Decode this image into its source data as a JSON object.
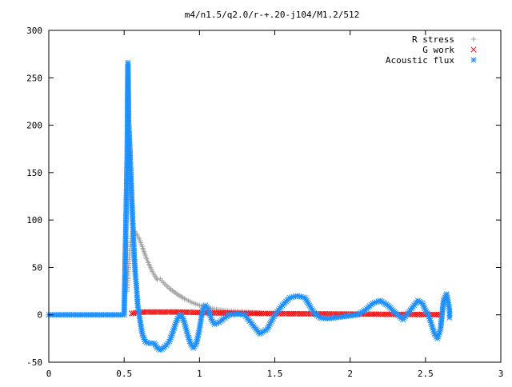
{
  "chart_data": {
    "type": "scatter",
    "title": "m4/n1.5/q2.0/r-+.20-j104/M1.2/512",
    "xlabel": "",
    "ylabel": "",
    "xlim": [
      0,
      3
    ],
    "ylim": [
      -50,
      300
    ],
    "x_ticks": [
      "0",
      "0.5",
      "1",
      "1.5",
      "2",
      "2.5",
      "3"
    ],
    "y_ticks": [
      "300",
      "250",
      "200",
      "150",
      "100",
      "50",
      "0",
      "-50"
    ],
    "grid": false,
    "legend_position": "top-right",
    "series": [
      {
        "name": "R stress",
        "marker": "plus",
        "color": "#a0a0a0",
        "points": [
          [
            0.52,
            25
          ],
          [
            0.525,
            40
          ],
          [
            0.53,
            52
          ],
          [
            0.535,
            63
          ],
          [
            0.54,
            72
          ],
          [
            0.545,
            78
          ],
          [
            0.55,
            83
          ],
          [
            0.56,
            87
          ],
          [
            0.57,
            88
          ],
          [
            0.58,
            86
          ],
          [
            0.6,
            80
          ],
          [
            0.62,
            72
          ],
          [
            0.64,
            63
          ],
          [
            0.66,
            55
          ],
          [
            0.68,
            48
          ],
          [
            0.7,
            42
          ],
          [
            0.72,
            37
          ],
          [
            0.74,
            38
          ],
          [
            0.76,
            34
          ],
          [
            0.8,
            28
          ],
          [
            0.85,
            22
          ],
          [
            0.9,
            17
          ],
          [
            0.95,
            13
          ],
          [
            1.0,
            10
          ],
          [
            1.05,
            8
          ],
          [
            1.1,
            6
          ],
          [
            1.15,
            5
          ],
          [
            1.2,
            4
          ],
          [
            1.25,
            3.5
          ],
          [
            1.3,
            3
          ],
          [
            1.35,
            2.5
          ],
          [
            1.4,
            2
          ]
        ]
      },
      {
        "name": "G work",
        "marker": "cross",
        "color": "#ff0000",
        "points": [
          [
            0.55,
            1.5
          ],
          [
            0.6,
            2.5
          ],
          [
            0.65,
            3
          ],
          [
            0.7,
            3
          ],
          [
            0.75,
            3
          ],
          [
            0.8,
            3
          ],
          [
            0.85,
            3
          ],
          [
            0.9,
            2.8
          ],
          [
            0.95,
            2.6
          ],
          [
            1.0,
            2.4
          ],
          [
            1.05,
            2.2
          ],
          [
            1.1,
            2
          ],
          [
            1.15,
            1.9
          ],
          [
            1.2,
            1.8
          ],
          [
            1.3,
            1.6
          ],
          [
            1.4,
            1.5
          ],
          [
            1.5,
            1.3
          ],
          [
            1.6,
            1.2
          ],
          [
            1.7,
            1.1
          ],
          [
            1.8,
            1
          ],
          [
            1.9,
            0.9
          ],
          [
            2.0,
            0.8
          ],
          [
            2.1,
            0.7
          ],
          [
            2.2,
            0.6
          ],
          [
            2.3,
            0.5
          ],
          [
            2.4,
            0.4
          ],
          [
            2.5,
            0.3
          ],
          [
            2.6,
            0.2
          ]
        ]
      },
      {
        "name": "Acoustic flux",
        "marker": "star",
        "color": "#1e90ff",
        "points": [
          [
            0.0,
            0
          ],
          [
            0.05,
            0
          ],
          [
            0.1,
            0
          ],
          [
            0.15,
            0
          ],
          [
            0.2,
            0
          ],
          [
            0.25,
            0
          ],
          [
            0.3,
            0
          ],
          [
            0.35,
            0
          ],
          [
            0.4,
            0
          ],
          [
            0.45,
            0
          ],
          [
            0.5,
            0
          ],
          [
            0.52,
            165
          ],
          [
            0.525,
            266
          ],
          [
            0.53,
            203
          ],
          [
            0.535,
            187
          ],
          [
            0.54,
            168
          ],
          [
            0.545,
            146
          ],
          [
            0.55,
            125
          ],
          [
            0.555,
            106
          ],
          [
            0.56,
            88
          ],
          [
            0.565,
            70
          ],
          [
            0.57,
            54
          ],
          [
            0.575,
            42
          ],
          [
            0.58,
            33
          ],
          [
            0.585,
            22
          ],
          [
            0.59,
            10
          ],
          [
            0.6,
            0
          ],
          [
            0.61,
            -10
          ],
          [
            0.62,
            -20
          ],
          [
            0.64,
            -28
          ],
          [
            0.66,
            -30
          ],
          [
            0.68,
            -30
          ],
          [
            0.7,
            -30
          ],
          [
            0.72,
            -35
          ],
          [
            0.74,
            -37
          ],
          [
            0.76,
            -35
          ],
          [
            0.78,
            -32
          ],
          [
            0.8,
            -28
          ],
          [
            0.82,
            -20
          ],
          [
            0.84,
            -10
          ],
          [
            0.86,
            -2
          ],
          [
            0.88,
            0
          ],
          [
            0.9,
            -8
          ],
          [
            0.92,
            -20
          ],
          [
            0.94,
            -30
          ],
          [
            0.96,
            -35
          ],
          [
            0.98,
            -30
          ],
          [
            1.0,
            -15
          ],
          [
            1.02,
            5
          ],
          [
            1.04,
            10
          ],
          [
            1.06,
            5
          ],
          [
            1.08,
            -5
          ],
          [
            1.1,
            -10
          ],
          [
            1.13,
            -8
          ],
          [
            1.16,
            -4
          ],
          [
            1.2,
            0
          ],
          [
            1.25,
            1
          ],
          [
            1.3,
            0
          ],
          [
            1.35,
            -10
          ],
          [
            1.4,
            -20
          ],
          [
            1.45,
            -15
          ],
          [
            1.5,
            0
          ],
          [
            1.55,
            10
          ],
          [
            1.6,
            18
          ],
          [
            1.65,
            20
          ],
          [
            1.7,
            18
          ],
          [
            1.73,
            10
          ],
          [
            1.76,
            2
          ],
          [
            1.8,
            -3
          ],
          [
            1.85,
            -4
          ],
          [
            1.9,
            -3
          ],
          [
            1.95,
            -2
          ],
          [
            2.0,
            -1
          ],
          [
            2.05,
            0
          ],
          [
            2.1,
            5
          ],
          [
            2.15,
            12
          ],
          [
            2.2,
            15
          ],
          [
            2.25,
            10
          ],
          [
            2.3,
            2
          ],
          [
            2.35,
            -5
          ],
          [
            2.4,
            5
          ],
          [
            2.45,
            15
          ],
          [
            2.48,
            12
          ],
          [
            2.5,
            5
          ],
          [
            2.52,
            0
          ],
          [
            2.54,
            -10
          ],
          [
            2.56,
            -20
          ],
          [
            2.58,
            -25
          ],
          [
            2.6,
            -15
          ],
          [
            2.62,
            15
          ],
          [
            2.64,
            22
          ],
          [
            2.66,
            5
          ],
          [
            2.66,
            -3
          ]
        ]
      }
    ]
  }
}
